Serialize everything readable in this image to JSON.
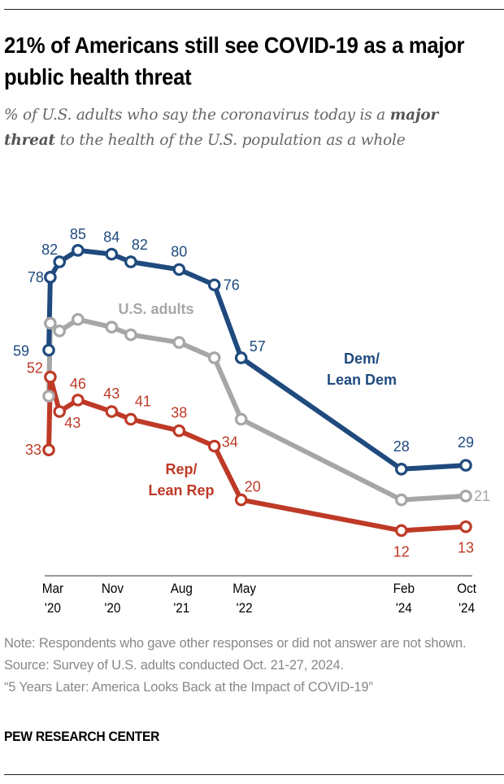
{
  "header": {
    "title": "21% of Americans still see COVID-19 as a major public health threat",
    "subtitle_pre": "% of U.S. adults who say the coronavirus today is a ",
    "subtitle_bold": "major threat",
    "subtitle_post": " to the health of the U.S. population as a whole"
  },
  "chart_data": {
    "type": "line",
    "title": "21% of Americans still see COVID-19 as a major public health threat",
    "subtitle": "% of U.S. adults who say the coronavirus today is a major threat to the health of the U.S. population as a whole",
    "xlabel": "",
    "ylabel": "",
    "x_unit": "months since March 2020 (approximate survey timing)",
    "x": [
      0,
      0.2,
      1.4,
      3.8,
      8.2,
      10.7,
      17,
      21.6,
      25.1,
      46,
      54.4
    ],
    "xlim": [
      0,
      54.4
    ],
    "ylim": [
      0,
      90
    ],
    "grid": false,
    "x_ticks": [
      {
        "x": 0.2,
        "line1": "Mar",
        "line2": "'20"
      },
      {
        "x": 8,
        "line1": "Nov",
        "line2": "'20"
      },
      {
        "x": 17,
        "line1": "Aug",
        "line2": "'21"
      },
      {
        "x": 25.2,
        "line1": "May",
        "line2": "'22"
      },
      {
        "x": 46,
        "line1": "Feb",
        "line2": "'24"
      },
      {
        "x": 54.2,
        "line1": "Oct",
        "line2": "'24"
      }
    ],
    "series": [
      {
        "name": "U.S. adults",
        "legend_label": [
          "U.S. adults"
        ],
        "color": "#a6a6a6",
        "values": [
          47,
          66,
          64,
          67,
          65,
          63,
          61,
          57,
          41,
          20,
          21
        ],
        "labeled_points": [
          {
            "index": 10,
            "label": "21"
          }
        ]
      },
      {
        "name": "Dem/Lean Dem",
        "legend_label": [
          "Dem/",
          "Lean Dem"
        ],
        "color": "#1f4a7e",
        "values": [
          59,
          78,
          82,
          85,
          84,
          82,
          80,
          76,
          57,
          28,
          29
        ],
        "labeled_points": [
          {
            "index": 0,
            "label": "59"
          },
          {
            "index": 1,
            "label": "78"
          },
          {
            "index": 2,
            "label": "82"
          },
          {
            "index": 3,
            "label": "85"
          },
          {
            "index": 4,
            "label": "84"
          },
          {
            "index": 5,
            "label": "82"
          },
          {
            "index": 6,
            "label": "80"
          },
          {
            "index": 7,
            "label": "76"
          },
          {
            "index": 8,
            "label": "57"
          },
          {
            "index": 9,
            "label": "28"
          },
          {
            "index": 10,
            "label": "29"
          }
        ]
      },
      {
        "name": "Rep/Lean Rep",
        "legend_label": [
          "Rep/",
          "Lean Rep"
        ],
        "color": "#be3a27",
        "values": [
          33,
          52,
          43,
          46,
          43,
          41,
          38,
          34,
          20,
          12,
          13
        ],
        "labeled_points": [
          {
            "index": 0,
            "label": "33"
          },
          {
            "index": 1,
            "label": "52"
          },
          {
            "index": 2,
            "label": "43"
          },
          {
            "index": 3,
            "label": "46"
          },
          {
            "index": 4,
            "label": "43"
          },
          {
            "index": 5,
            "label": "41"
          },
          {
            "index": 6,
            "label": "38"
          },
          {
            "index": 7,
            "label": "34"
          },
          {
            "index": 8,
            "label": "20"
          },
          {
            "index": 9,
            "label": "12"
          },
          {
            "index": 10,
            "label": "13"
          }
        ]
      }
    ]
  },
  "footer": {
    "note": "Note: Respondents who gave other responses or did not answer are not shown.",
    "source": "Source: Survey of U.S. adults conducted Oct. 21-27, 2024.",
    "report": "“5 Years Later: America Looks Back at the Impact of COVID-19”",
    "brand": "PEW RESEARCH CENTER"
  }
}
